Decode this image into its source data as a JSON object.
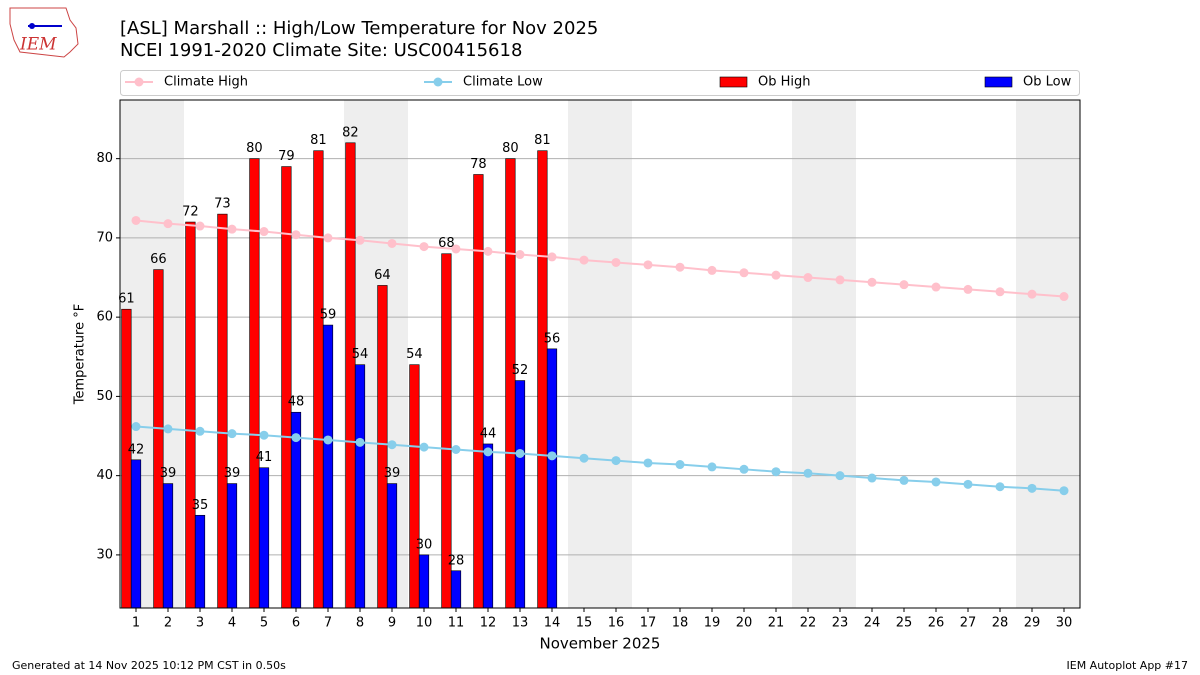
{
  "chart_data": {
    "type": "bar",
    "logo": "IEM",
    "title": "[ASL] Marshall :: High/Low Temperature for Nov 2025",
    "subtitle": "NCEI 1991-2020 Climate Site: USC00415618",
    "xlabel": "November 2025",
    "ylabel": "Temperature °F",
    "footer_left": "Generated at 14 Nov 2025 10:12 PM CST in 0.50s",
    "footer_right": "IEM Autoplot App #17",
    "x": [
      1,
      2,
      3,
      4,
      5,
      6,
      7,
      8,
      9,
      10,
      11,
      12,
      13,
      14,
      15,
      16,
      17,
      18,
      19,
      20,
      21,
      22,
      23,
      24,
      25,
      26,
      27,
      28,
      29,
      30
    ],
    "xlim": [
      0.5,
      30.5
    ],
    "xticks": [
      1,
      2,
      3,
      4,
      5,
      6,
      7,
      8,
      9,
      10,
      11,
      12,
      13,
      14,
      15,
      16,
      17,
      18,
      19,
      20,
      21,
      22,
      23,
      24,
      25,
      26,
      27,
      28,
      29,
      30
    ],
    "ylim": [
      23.3,
      87.4
    ],
    "yticks": [
      30,
      40,
      50,
      60,
      70,
      80
    ],
    "grid": "y",
    "shaded_days": [
      1,
      2,
      8,
      9,
      15,
      16,
      22,
      23,
      29,
      30
    ],
    "shade_color": "#eeeeee",
    "series": [
      {
        "name": "Climate High",
        "kind": "line",
        "color": "#ffc0cb",
        "values": [
          72.2,
          71.8,
          71.5,
          71.1,
          70.8,
          70.4,
          70.0,
          69.7,
          69.3,
          68.9,
          68.6,
          68.3,
          67.9,
          67.6,
          67.2,
          66.9,
          66.6,
          66.3,
          65.9,
          65.6,
          65.3,
          65.0,
          64.7,
          64.4,
          64.1,
          63.8,
          63.5,
          63.2,
          62.9,
          62.6
        ]
      },
      {
        "name": "Climate Low",
        "kind": "line",
        "color": "#87ceeb",
        "values": [
          46.2,
          45.9,
          45.6,
          45.3,
          45.1,
          44.8,
          44.5,
          44.2,
          43.9,
          43.6,
          43.3,
          43.0,
          42.8,
          42.5,
          42.2,
          41.9,
          41.6,
          41.4,
          41.1,
          40.8,
          40.5,
          40.3,
          40.0,
          39.7,
          39.4,
          39.2,
          38.9,
          38.6,
          38.4,
          38.1
        ]
      },
      {
        "name": "Ob High",
        "kind": "bar",
        "color": "#ff0000",
        "values": [
          61,
          66,
          72,
          73,
          80,
          79,
          81,
          82,
          64,
          54,
          68,
          78,
          80,
          81,
          null,
          null,
          null,
          null,
          null,
          null,
          null,
          null,
          null,
          null,
          null,
          null,
          null,
          null,
          null,
          null
        ]
      },
      {
        "name": "Ob Low",
        "kind": "bar",
        "color": "#0000ff",
        "values": [
          42,
          39,
          35,
          39,
          41,
          48,
          59,
          54,
          39,
          30,
          28,
          44,
          52,
          56,
          null,
          null,
          null,
          null,
          null,
          null,
          null,
          null,
          null,
          null,
          null,
          null,
          null,
          null,
          null,
          null
        ]
      }
    ]
  }
}
